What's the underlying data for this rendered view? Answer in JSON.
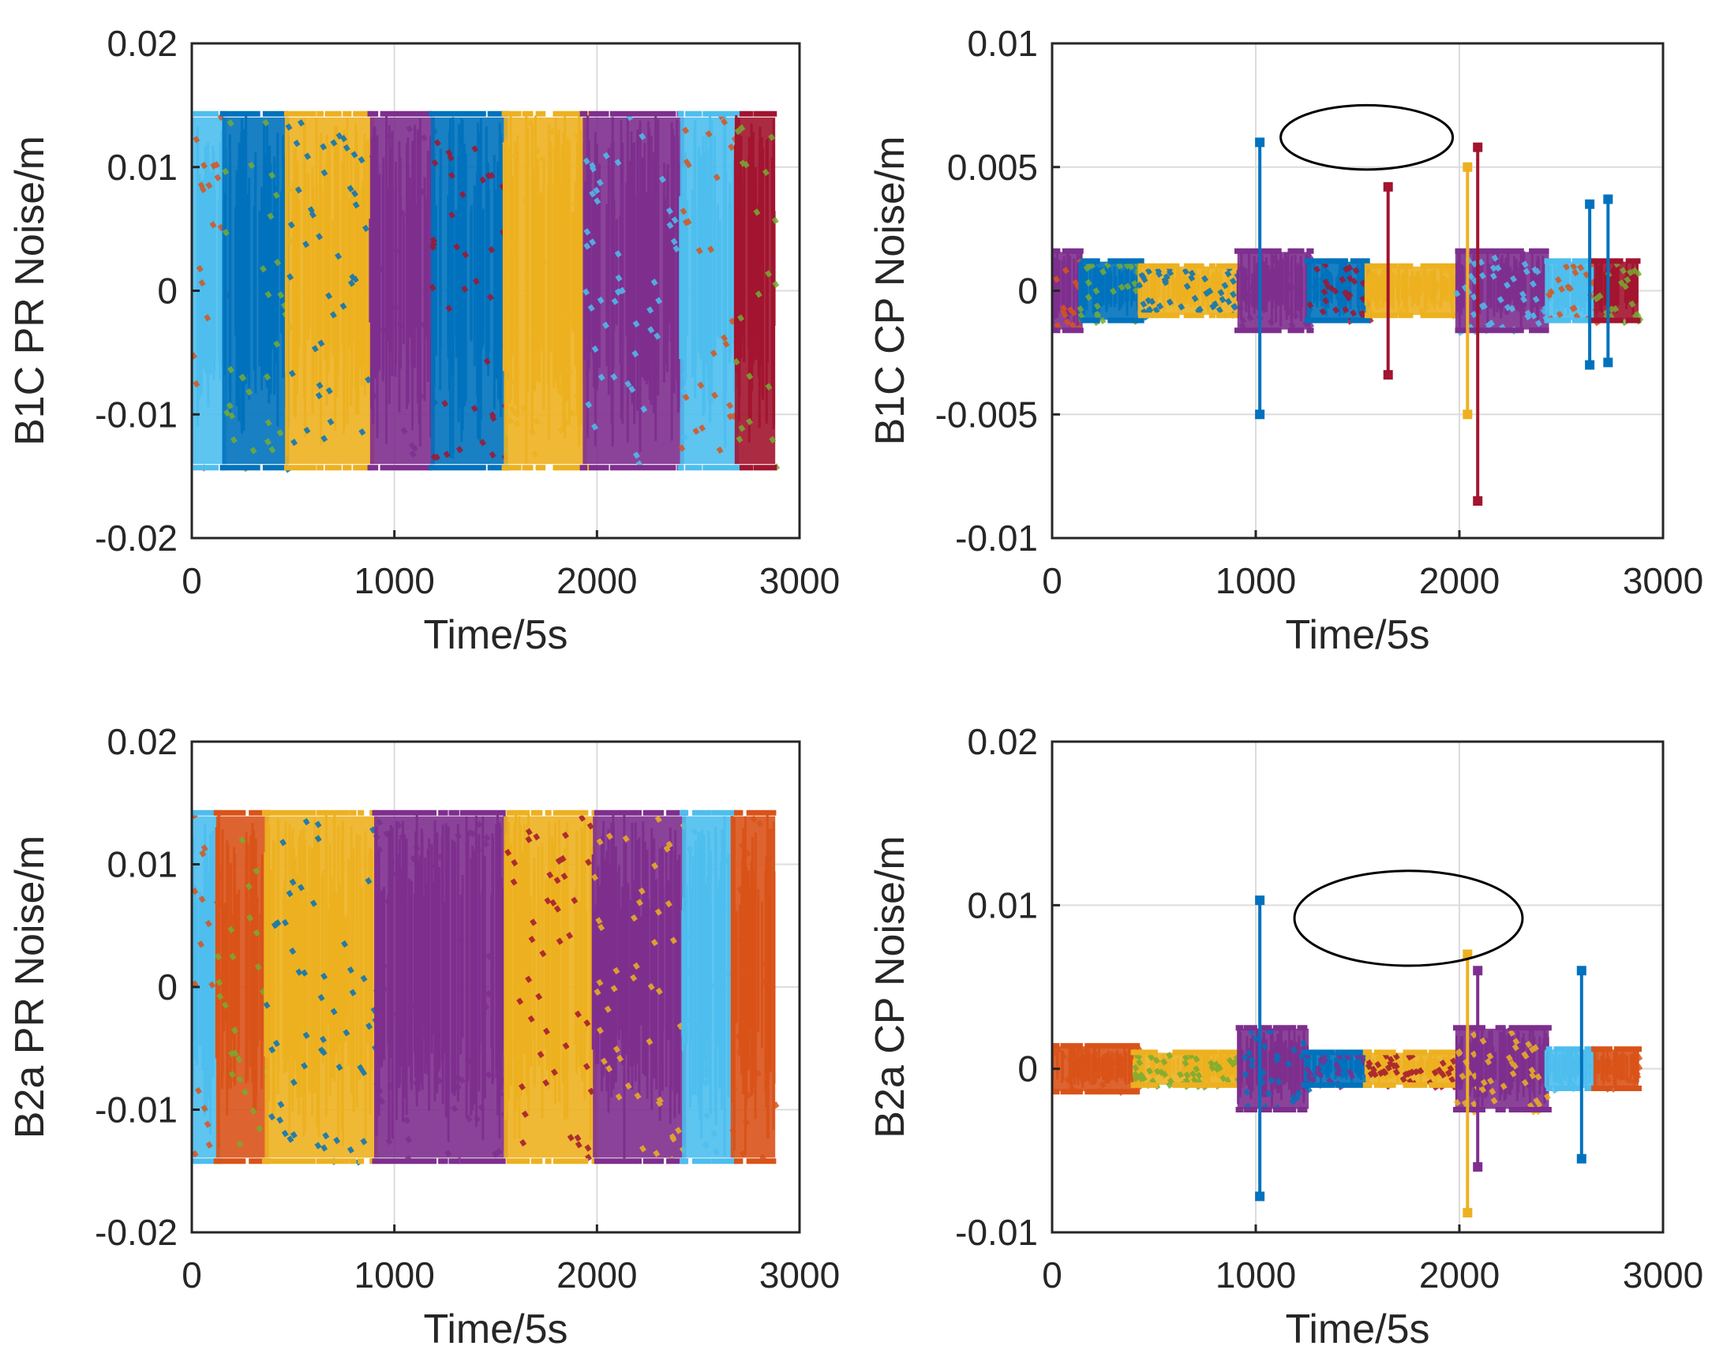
{
  "figure": {
    "layout": "2x2 grid of scatter/line noise plots"
  },
  "palette": [
    "#0072BD",
    "#D95319",
    "#EDB120",
    "#7E2F8E",
    "#77AC30",
    "#4DBEEE",
    "#A2142F"
  ],
  "chart_data": [
    {
      "id": "b1c-pr",
      "type": "scatter",
      "xlabel": "Time/5s",
      "ylabel": "B1C PR Noise/m",
      "xlim": [
        0,
        3000
      ],
      "ylim": [
        -0.02,
        0.02
      ],
      "xticks": [
        0,
        1000,
        2000,
        3000
      ],
      "xtick_labels": [
        "0",
        "1000",
        "2000",
        "3000"
      ],
      "yticks": [
        -0.02,
        -0.01,
        0,
        0.01,
        0.02
      ],
      "ytick_labels": [
        "-0.02",
        "-0.01",
        "0",
        "0.01",
        "0.02"
      ],
      "grid": true,
      "series": [
        {
          "name": "segment-1",
          "color": "#4DBEEE",
          "x_range": [
            0,
            170
          ],
          "amplitude": 0.0143,
          "style": "band"
        },
        {
          "name": "segment-2",
          "color": "#0072BD",
          "x_range": [
            150,
            480
          ],
          "amplitude": 0.0143,
          "style": "band"
        },
        {
          "name": "segment-3",
          "color": "#EDB120",
          "x_range": [
            460,
            900
          ],
          "amplitude": 0.0143,
          "style": "band"
        },
        {
          "name": "segment-4",
          "color": "#7E2F8E",
          "x_range": [
            880,
            1200
          ],
          "amplitude": 0.0143,
          "style": "band"
        },
        {
          "name": "segment-5",
          "color": "#0072BD",
          "x_range": [
            1180,
            1560
          ],
          "amplitude": 0.0143,
          "style": "band"
        },
        {
          "name": "segment-6",
          "color": "#EDB120",
          "x_range": [
            1540,
            1950
          ],
          "amplitude": 0.0143,
          "style": "band"
        },
        {
          "name": "segment-7",
          "color": "#7E2F8E",
          "x_range": [
            1930,
            2430
          ],
          "amplitude": 0.0143,
          "style": "band"
        },
        {
          "name": "segment-8",
          "color": "#4DBEEE",
          "x_range": [
            2410,
            2700
          ],
          "amplitude": 0.0143,
          "style": "band"
        },
        {
          "name": "segment-9",
          "color": "#A2142F",
          "x_range": [
            2680,
            2880
          ],
          "amplitude": 0.0143,
          "style": "band"
        }
      ],
      "annotation": null
    },
    {
      "id": "b1c-cp",
      "type": "scatter",
      "xlabel": "Time/5s",
      "ylabel": "B1C CP Noise/m",
      "xlim": [
        0,
        3000
      ],
      "ylim": [
        -0.01,
        0.01
      ],
      "xticks": [
        0,
        1000,
        2000,
        3000
      ],
      "xtick_labels": [
        "0",
        "1000",
        "2000",
        "3000"
      ],
      "yticks": [
        -0.01,
        -0.005,
        0,
        0.005,
        0.01
      ],
      "ytick_labels": [
        "-0.01",
        "-0.005",
        "0",
        "0.005",
        "0.01"
      ],
      "grid": true,
      "series": [
        {
          "name": "segment-1",
          "color": "#7E2F8E",
          "x_range": [
            0,
            150
          ],
          "amplitude": 0.0016,
          "style": "band"
        },
        {
          "name": "segment-2",
          "color": "#0072BD",
          "x_range": [
            130,
            440
          ],
          "amplitude": 0.0012,
          "style": "band"
        },
        {
          "name": "segment-3",
          "color": "#EDB120",
          "x_range": [
            420,
            930
          ],
          "amplitude": 0.001,
          "style": "band"
        },
        {
          "name": "segment-4",
          "color": "#7E2F8E",
          "x_range": [
            910,
            1270
          ],
          "amplitude": 0.0016,
          "style": "band"
        },
        {
          "name": "segment-5",
          "color": "#0072BD",
          "x_range": [
            1250,
            1560
          ],
          "amplitude": 0.0012,
          "style": "band"
        },
        {
          "name": "segment-6",
          "color": "#EDB120",
          "x_range": [
            1540,
            2000
          ],
          "amplitude": 0.001,
          "style": "band"
        },
        {
          "name": "segment-7",
          "color": "#7E2F8E",
          "x_range": [
            1980,
            2440
          ],
          "amplitude": 0.0016,
          "style": "band"
        },
        {
          "name": "segment-8",
          "color": "#4DBEEE",
          "x_range": [
            2420,
            2680
          ],
          "amplitude": 0.0012,
          "style": "band"
        },
        {
          "name": "segment-9",
          "color": "#A2142F",
          "x_range": [
            2660,
            2880
          ],
          "amplitude": 0.0012,
          "style": "band"
        }
      ],
      "spikes": [
        {
          "x": 1020,
          "ymax": 0.006,
          "ymin": -0.005,
          "color": "#0072BD"
        },
        {
          "x": 1650,
          "ymax": 0.0042,
          "ymin": -0.0034,
          "color": "#A2142F"
        },
        {
          "x": 2040,
          "ymax": 0.005,
          "ymin": -0.005,
          "color": "#EDB120"
        },
        {
          "x": 2090,
          "ymax": 0.0058,
          "ymin": -0.0085,
          "color": "#A2142F"
        },
        {
          "x": 2640,
          "ymax": 0.0035,
          "ymin": -0.003,
          "color": "#0072BD"
        },
        {
          "x": 2730,
          "ymax": 0.0037,
          "ymin": -0.0029,
          "color": "#0072BD"
        }
      ],
      "annotation": {
        "shape": "ellipse",
        "cx": 1545,
        "cy": 0.0062,
        "rx": 845,
        "ry": 0.0026
      }
    },
    {
      "id": "b2a-pr",
      "type": "scatter",
      "xlabel": "Time/5s",
      "ylabel": "B2a PR Noise/m",
      "xlim": [
        0,
        3000
      ],
      "ylim": [
        -0.02,
        0.02
      ],
      "xticks": [
        0,
        1000,
        2000,
        3000
      ],
      "xtick_labels": [
        "0",
        "1000",
        "2000",
        "3000"
      ],
      "yticks": [
        -0.02,
        -0.01,
        0,
        0.01,
        0.02
      ],
      "ytick_labels": [
        "-0.02",
        "-0.01",
        "0",
        "0.01",
        "0.02"
      ],
      "grid": true,
      "series": [
        {
          "name": "segment-1",
          "color": "#4DBEEE",
          "x_range": [
            0,
            140
          ],
          "amplitude": 0.0142,
          "style": "band"
        },
        {
          "name": "segment-2",
          "color": "#D95319",
          "x_range": [
            120,
            380
          ],
          "amplitude": 0.0142,
          "style": "band"
        },
        {
          "name": "segment-3",
          "color": "#EDB120",
          "x_range": [
            360,
            920
          ],
          "amplitude": 0.0142,
          "style": "band"
        },
        {
          "name": "segment-4",
          "color": "#7E2F8E",
          "x_range": [
            900,
            1560
          ],
          "amplitude": 0.0142,
          "style": "band"
        },
        {
          "name": "segment-5",
          "color": "#EDB120",
          "x_range": [
            1540,
            2000
          ],
          "amplitude": 0.0142,
          "style": "band"
        },
        {
          "name": "segment-6",
          "color": "#7E2F8E",
          "x_range": [
            1980,
            2440
          ],
          "amplitude": 0.0142,
          "style": "band"
        },
        {
          "name": "segment-7",
          "color": "#4DBEEE",
          "x_range": [
            2420,
            2680
          ],
          "amplitude": 0.0142,
          "style": "band"
        },
        {
          "name": "segment-8",
          "color": "#D95319",
          "x_range": [
            2660,
            2880
          ],
          "amplitude": 0.0142,
          "style": "band"
        }
      ],
      "annotation": null
    },
    {
      "id": "b2a-cp",
      "type": "scatter",
      "xlabel": "Time/5s",
      "ylabel": "B2a CP Noise/m",
      "xlim": [
        0,
        3000
      ],
      "ylim": [
        -0.01,
        0.02
      ],
      "xticks": [
        0,
        1000,
        2000,
        3000
      ],
      "xtick_labels": [
        "0",
        "1000",
        "2000",
        "3000"
      ],
      "yticks": [
        -0.01,
        0,
        0.01,
        0.02
      ],
      "ytick_labels": [
        "-0.01",
        "0",
        "0.01",
        "0.02"
      ],
      "grid": true,
      "series": [
        {
          "name": "segment-1",
          "color": "#D95319",
          "x_range": [
            0,
            420
          ],
          "amplitude": 0.0014,
          "style": "band"
        },
        {
          "name": "segment-2",
          "color": "#EDB120",
          "x_range": [
            400,
            930
          ],
          "amplitude": 0.001,
          "style": "band"
        },
        {
          "name": "segment-3",
          "color": "#7E2F8E",
          "x_range": [
            910,
            1260
          ],
          "amplitude": 0.0025,
          "style": "band"
        },
        {
          "name": "segment-4",
          "color": "#0072BD",
          "x_range": [
            1240,
            1560
          ],
          "amplitude": 0.001,
          "style": "band"
        },
        {
          "name": "segment-5",
          "color": "#EDB120",
          "x_range": [
            1540,
            2000
          ],
          "amplitude": 0.001,
          "style": "band"
        },
        {
          "name": "segment-6",
          "color": "#7E2F8E",
          "x_range": [
            1980,
            2440
          ],
          "amplitude": 0.0025,
          "style": "band"
        },
        {
          "name": "segment-7",
          "color": "#4DBEEE",
          "x_range": [
            2420,
            2680
          ],
          "amplitude": 0.0012,
          "style": "band"
        },
        {
          "name": "segment-8",
          "color": "#D95319",
          "x_range": [
            2660,
            2880
          ],
          "amplitude": 0.0012,
          "style": "band"
        }
      ],
      "spikes": [
        {
          "x": 1020,
          "ymax": 0.0103,
          "ymin": -0.0078,
          "color": "#0072BD"
        },
        {
          "x": 2040,
          "ymax": 0.007,
          "ymin": -0.0088,
          "color": "#EDB120"
        },
        {
          "x": 2090,
          "ymax": 0.006,
          "ymin": -0.006,
          "color": "#7E2F8E"
        },
        {
          "x": 2600,
          "ymax": 0.006,
          "ymin": -0.0055,
          "color": "#0072BD"
        }
      ],
      "annotation": {
        "shape": "ellipse",
        "cx": 1750,
        "cy": 0.0092,
        "rx": 1120,
        "ry": 0.0058
      }
    }
  ]
}
